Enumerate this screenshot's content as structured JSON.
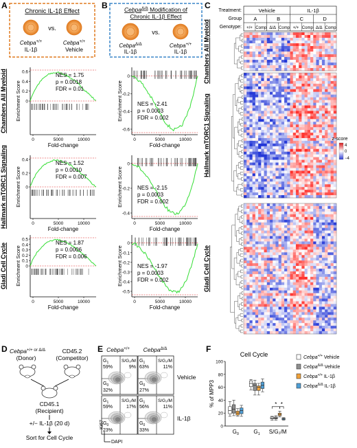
{
  "panels": {
    "A": {
      "letter": "A",
      "box_title": "Chronic IL-1β Effect",
      "left_label_gene": "Cebpa",
      "left_label_sup": "+/+",
      "left_label_tx": "IL-1β",
      "vs": "vs.",
      "right_label_gene": "Cebpa",
      "right_label_sup": "+/+",
      "right_label_tx": "Vehicle"
    },
    "B": {
      "letter": "B",
      "box_title_gene": "Cebpa",
      "box_title_sup": "Δ/Δ",
      "box_title_rest": " Modification of",
      "box_title_line2": "Chronic IL-1β Effect",
      "left_label_gene": "Cebpa",
      "left_label_sup": "Δ/Δ",
      "left_label_tx": "IL-1β",
      "vs": "vs.",
      "right_label_gene": "Cebpa",
      "right_label_sup": "+/+",
      "right_label_tx": "IL-1β"
    },
    "C": {
      "letter": "C",
      "row_treatment": "Treatment:",
      "row_group": "Group",
      "row_genotype": "Genotype:",
      "treatments": [
        "Vehicle",
        "IL-1β"
      ],
      "groups": [
        "A",
        "B",
        "C",
        "D"
      ],
      "genotypes": [
        "+/+",
        "Comp",
        "Δ/Δ",
        "Comp",
        "+/+",
        "Comp",
        "Δ/Δ",
        "Comp"
      ],
      "legend_title": "z-score",
      "legend_ticks": [
        "4",
        "0",
        "−4"
      ],
      "heatmap_labels": [
        "Chambers All Myeloid",
        "Hallmark mTORC1 Signaling",
        "Gladi Cell Cycle"
      ]
    },
    "D": {
      "letter": "D",
      "donor_gene": "Cebpa",
      "donor_sup": "+/+ or Δ/Δ",
      "donor_label": "(Donor)",
      "competitor_label": "CD45.2",
      "competitor_sub": "(Competitor)",
      "recipient_label": "CD45.1",
      "recipient_sub": "(Recipient)",
      "treatment_step": "+/− IL-1β (20 d)",
      "sort_step": "Sort for Cell Cycle"
    },
    "E": {
      "letter": "E",
      "col1_gene": "Cebpa",
      "col1_sup": "+/+",
      "col2_gene": "Cebpa",
      "col2_sup": "Δ/Δ",
      "row1_label": "Vehicle",
      "row2_label": "IL-1β",
      "y_axis": "Ki67",
      "x_axis": "DAPI",
      "plots": [
        {
          "g1": "G1",
          "g1_pct": "59%",
          "s": "S/G2/M",
          "s_pct": "9%",
          "g0": "G0",
          "g0_pct": "32%"
        },
        {
          "g1": "G1",
          "g1_pct": "63%",
          "s": "S/G2/M",
          "s_pct": "11%",
          "g0": "G0",
          "g0_pct": "27%"
        },
        {
          "g1": "G1",
          "g1_pct": "59%",
          "s": "S/G2/M",
          "s_pct": "17%",
          "g0": "G0",
          "g0_pct": "23%"
        },
        {
          "g1": "G1",
          "g1_pct": "56%",
          "s": "S/G2/M",
          "s_pct": "11%",
          "g0": "G0",
          "g0_pct": "33%"
        }
      ]
    },
    "F": {
      "letter": "F",
      "sig": "*"
    }
  },
  "gsea": [
    {
      "gene_set": "Chambers All Myeloid",
      "panel": "A",
      "nes": "NES = 1.75",
      "p": "p = 0.0018",
      "fdr": "FDR = 0.01",
      "ylabel": "Enrichment Score",
      "xlabel": "Fold-change",
      "yticks": [
        "0.6",
        "0.4",
        "0.2",
        "0"
      ],
      "xticks": [
        "0",
        "5000",
        "10000"
      ]
    },
    {
      "gene_set": "Chambers All Myeloid",
      "panel": "B",
      "nes": "NES = -2.41",
      "p": "p = 0.0003",
      "fdr": "FDR = 0.002",
      "ylabel": "Enrichment Score",
      "xlabel": "Fold-change",
      "yticks": [
        "0",
        "-0.2",
        "-0.4",
        "-0.6"
      ],
      "xticks": [
        "0",
        "5000",
        "10000"
      ]
    },
    {
      "gene_set": "Hallmark mTORC1 Signaling",
      "panel": "A",
      "nes": "NES = 1.52",
      "p": "p = 0.0010",
      "fdr": "FDR = 0.007",
      "ylabel": "Enrichment Score",
      "xlabel": "Fold-change",
      "yticks": [
        "0.4",
        "0.2",
        "0"
      ],
      "xticks": [
        "0",
        "5000",
        "10000"
      ]
    },
    {
      "gene_set": "Hallmark mTORC1 Signaling",
      "panel": "B",
      "nes": "NES = -2.15",
      "p": "p = 0.0003",
      "fdr": "FDR = 0.002",
      "ylabel": "Enrichment Score",
      "xlabel": "Fold-change",
      "yticks": [
        "0",
        "-0.2",
        "-0.4"
      ],
      "xticks": [
        "0",
        "5000",
        "10000"
      ]
    },
    {
      "gene_set": "Gladi Cell Cycle",
      "panel": "A",
      "nes": "NES = 1.87",
      "p": "p = 0.0006",
      "fdr": "FDR = 0.006",
      "ylabel": "Enrichment Score",
      "xlabel": "Fold-change",
      "yticks": [
        "0.5",
        "0.4",
        "0.3",
        "0.2",
        "0.1",
        "0"
      ],
      "xticks": [
        "0",
        "5000",
        "10000"
      ]
    },
    {
      "gene_set": "Gladi Cell Cycle",
      "panel": "B",
      "nes": "NES = -1.97",
      "p": "p = 0.0003",
      "fdr": "FDR = 0.002",
      "ylabel": "Enrichment Score",
      "xlabel": "Fold-change",
      "yticks": [
        "0",
        "-0.1",
        "-0.2",
        "-0.3",
        "-0.4",
        "-0.5"
      ],
      "xticks": [
        "0",
        "5000",
        "10000"
      ]
    }
  ],
  "chart_data": {
    "type": "box",
    "title": "Cell Cycle",
    "ylabel": "% of MPP3",
    "ylim": [
      0,
      100
    ],
    "yticks": [
      "0",
      "20",
      "40",
      "60",
      "80",
      "100"
    ],
    "categories": [
      "G0",
      "G1",
      "S/G2/M"
    ],
    "series": [
      {
        "name": "Cebpa+/+ Vehicle",
        "name_gene": "Cebpa",
        "name_sup": "+/+",
        "name_tx": " Vehicle",
        "color": "#ffffff",
        "boxes": [
          [
            15,
            19,
            24,
            30,
            38
          ],
          [
            56,
            61,
            66,
            70,
            72
          ],
          [
            9,
            11,
            12,
            14,
            15
          ]
        ]
      },
      {
        "name": "CebpaΔ/Δ Vehicle",
        "name_gene": "Cebpa",
        "name_sup": "Δ/Δ",
        "name_tx": " Vehicle",
        "color": "#8f8f8f",
        "boxes": [
          [
            16,
            20,
            26,
            33,
            40
          ],
          [
            48,
            55,
            63,
            66,
            71
          ],
          [
            9,
            11,
            12,
            14,
            16
          ]
        ]
      },
      {
        "name": "Cebpa+/+ IL-1β",
        "name_gene": "Cebpa",
        "name_sup": "+/+",
        "name_tx": " IL-1β",
        "color": "#f0a23a",
        "boxes": [
          [
            15,
            17,
            20,
            23,
            27
          ],
          [
            48,
            55,
            60,
            62,
            66
          ],
          [
            14,
            16,
            18,
            20,
            23
          ]
        ]
      },
      {
        "name": "CebpaΔ/Δ IL-1β",
        "name_gene": "Cebpa",
        "name_sup": "Δ/Δ",
        "name_tx": " IL-1β",
        "color": "#4f9fd6",
        "boxes": [
          [
            15,
            19,
            24,
            28,
            32
          ],
          [
            53,
            58,
            63,
            68,
            73
          ],
          [
            9,
            10,
            11,
            12,
            13
          ]
        ]
      }
    ]
  }
}
